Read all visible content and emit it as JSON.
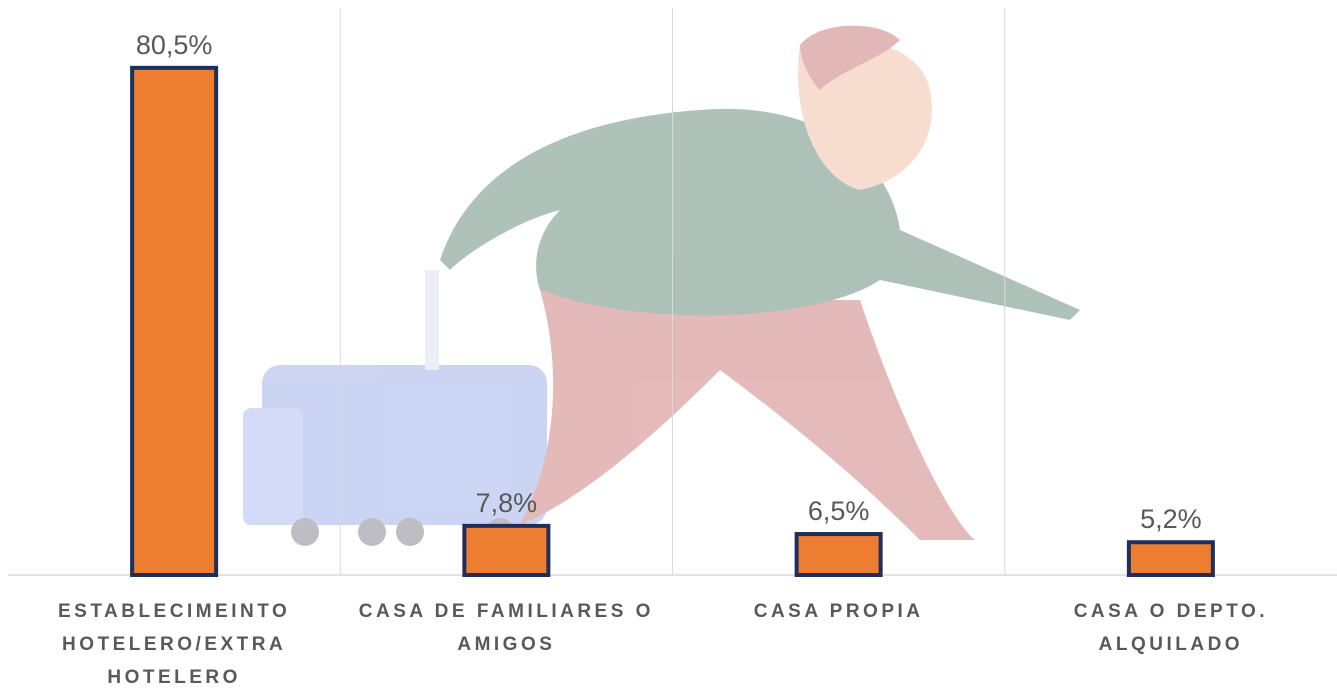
{
  "chart_data": {
    "type": "bar",
    "categories": [
      "ESTABLECIMEINTO HOTELERO/EXTRA HOTELERO",
      "CASA DE FAMILIARES O AMIGOS",
      "CASA PROPIA",
      "CASA O DEPTO. ALQUILADO"
    ],
    "values": [
      80.5,
      7.8,
      6.5,
      5.2
    ],
    "value_labels": [
      "80,5%",
      "7,8%",
      "6,5%",
      "5,2%"
    ],
    "color": "#ed7d31",
    "ylim": [
      0,
      90
    ]
  }
}
